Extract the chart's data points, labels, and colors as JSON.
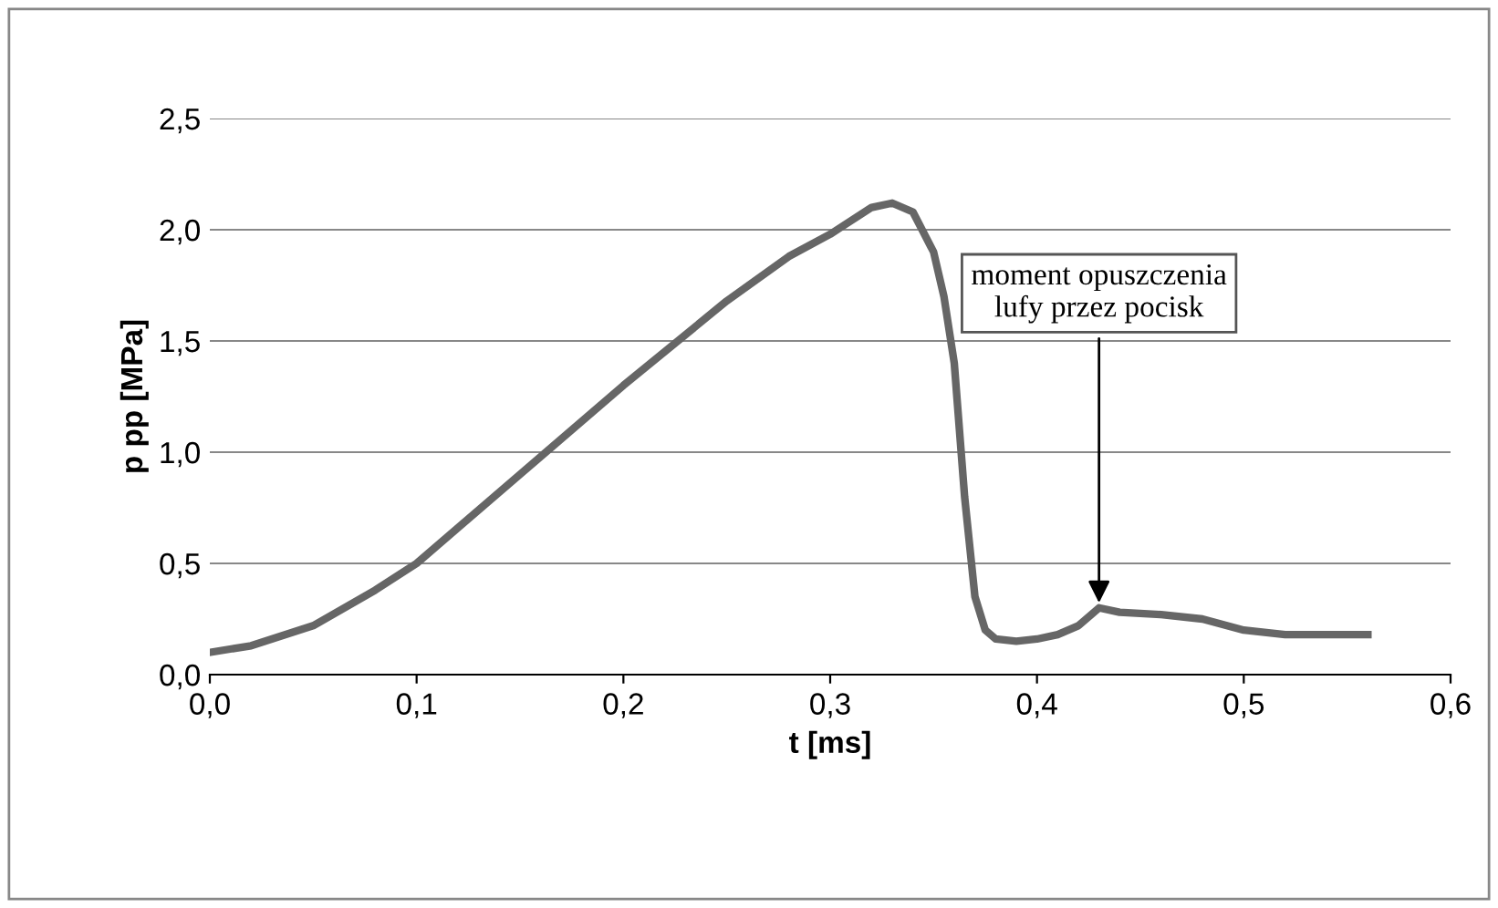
{
  "chart_data": {
    "type": "line",
    "xlabel": "t [ms]",
    "ylabel": "p pp [MPa]",
    "series": [
      {
        "color": "#666666",
        "x": [
          0,
          0.02,
          0.05,
          0.08,
          0.1,
          0.15,
          0.2,
          0.25,
          0.28,
          0.3,
          0.32,
          0.33,
          0.34,
          0.35,
          0.355,
          0.36,
          0.365,
          0.37,
          0.375,
          0.38,
          0.39,
          0.4,
          0.41,
          0.42,
          0.43,
          0.44,
          0.46,
          0.48,
          0.5,
          0.52,
          0.54,
          0.56
        ],
        "values": [
          0.1,
          0.13,
          0.22,
          0.38,
          0.5,
          0.9,
          1.3,
          1.68,
          1.88,
          1.98,
          2.1,
          2.12,
          2.08,
          1.9,
          1.7,
          1.4,
          0.8,
          0.35,
          0.2,
          0.16,
          0.15,
          0.16,
          0.18,
          0.22,
          0.3,
          0.28,
          0.27,
          0.25,
          0.2,
          0.18,
          0.18,
          0.18
        ]
      }
    ],
    "xlim": [
      0,
      0.6
    ],
    "ylim": [
      0,
      2.5
    ],
    "xticks": [
      {
        "value": 0,
        "label": "0,0"
      },
      {
        "value": 0.1,
        "label": "0,1"
      },
      {
        "value": 0.2,
        "label": "0,2"
      },
      {
        "value": 0.3,
        "label": "0,3"
      },
      {
        "value": 0.4,
        "label": "0,4"
      },
      {
        "value": 0.5,
        "label": "0,5"
      },
      {
        "value": 0.6,
        "label": "0,6"
      }
    ],
    "yticks": [
      {
        "value": 0,
        "label": "0,0"
      },
      {
        "value": 0.5,
        "label": "0,5"
      },
      {
        "value": 1,
        "label": "1,0"
      },
      {
        "value": 1.5,
        "label": "1,5"
      },
      {
        "value": 2,
        "label": "2,0"
      },
      {
        "value": 2.5,
        "label": "2,5"
      }
    ],
    "grid": "y",
    "marker": "none",
    "line_style": "solid",
    "legend": false,
    "annotations": [
      {
        "text": "moment opuszczenia\nlufy przez pocisk",
        "x": 0.43,
        "y": 0.3
      }
    ]
  }
}
